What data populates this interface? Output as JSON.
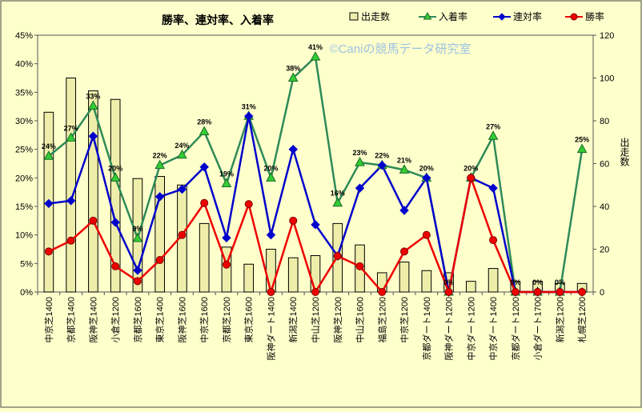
{
  "chart_data": {
    "type": "bar+line",
    "title": "勝率、連対率、入着率",
    "watermark": "©Caniの競馬データ研究室",
    "categories": [
      "中京芝1400",
      "京都芝1400",
      "阪神芝1400",
      "小倉芝1200",
      "京都芝1600",
      "東京芝1400",
      "阪神芝1600",
      "中京芝1600",
      "京都芝1200",
      "東京芝1600",
      "阪神ダート1400",
      "新潟芝1400",
      "中山芝1200",
      "阪神芝1200",
      "中山芝1600",
      "福島芝1200",
      "中京芝1200",
      "京都ダート1400",
      "阪神ダート1200",
      "中京ダート1200",
      "中京ダート1400",
      "京都ダート1200",
      "小倉ダート1700",
      "新潟芝1200",
      "札幌芝1200"
    ],
    "left_axis": {
      "min": 0,
      "max": 45,
      "step": 5,
      "unit": "%",
      "label": ""
    },
    "right_axis": {
      "min": 0,
      "max": 120,
      "step": 20,
      "label": "出走数"
    },
    "legend_position": "top-right",
    "gridlines": false,
    "series": [
      {
        "name": "出走数",
        "kind": "bar",
        "axis": "right",
        "color": "#eeeeaa",
        "values": [
          84,
          100,
          94,
          90,
          53,
          54,
          50,
          32,
          21,
          13,
          20,
          16,
          17,
          32,
          22,
          9,
          14,
          10,
          9,
          5,
          11,
          5,
          5,
          4,
          4
        ]
      },
      {
        "name": "入着率",
        "kind": "line",
        "axis": "left",
        "color": "#2e8b57",
        "marker": "triangle",
        "marker_color": "#33cc33",
        "values": [
          23.8,
          27.0,
          32.6,
          20.0,
          9.4,
          22.2,
          24.0,
          28.1,
          19.0,
          30.8,
          20.0,
          37.5,
          41.2,
          15.6,
          22.7,
          22.2,
          21.4,
          20.0,
          0.0,
          20.0,
          27.3,
          0.0,
          0.0,
          0.0,
          25.0
        ],
        "data_labels": [
          "24%",
          "27%",
          "33%",
          "20%",
          "9%",
          "22%",
          "24%",
          "28%",
          "19%",
          "31%",
          "20%",
          "38%",
          "41%",
          "16%",
          "23%",
          "22%",
          "21%",
          "20%",
          "0%",
          "20%",
          "27%",
          "0%",
          "0%",
          "0%",
          "25%"
        ]
      },
      {
        "name": "連対率",
        "kind": "line",
        "axis": "left",
        "color": "#0000cc",
        "marker": "diamond",
        "marker_color": "#0000cc",
        "values": [
          15.5,
          16.0,
          27.3,
          12.2,
          3.8,
          16.7,
          18.0,
          21.9,
          9.5,
          30.8,
          10.0,
          25.0,
          11.8,
          6.3,
          18.2,
          22.2,
          14.3,
          20.0,
          0.0,
          20.0,
          18.2,
          0.0,
          0.0,
          0.0,
          0.0
        ]
      },
      {
        "name": "勝率",
        "kind": "line",
        "axis": "left",
        "color": "#ee0000",
        "marker": "circle",
        "marker_color": "#ee0000",
        "values": [
          7.1,
          9.0,
          12.5,
          4.5,
          1.9,
          5.6,
          10.0,
          15.6,
          4.8,
          15.4,
          0.0,
          12.5,
          0.0,
          6.3,
          4.5,
          0.0,
          7.1,
          10.0,
          0.0,
          20.0,
          9.1,
          0.0,
          0.0,
          0.0,
          0.0
        ]
      }
    ]
  }
}
